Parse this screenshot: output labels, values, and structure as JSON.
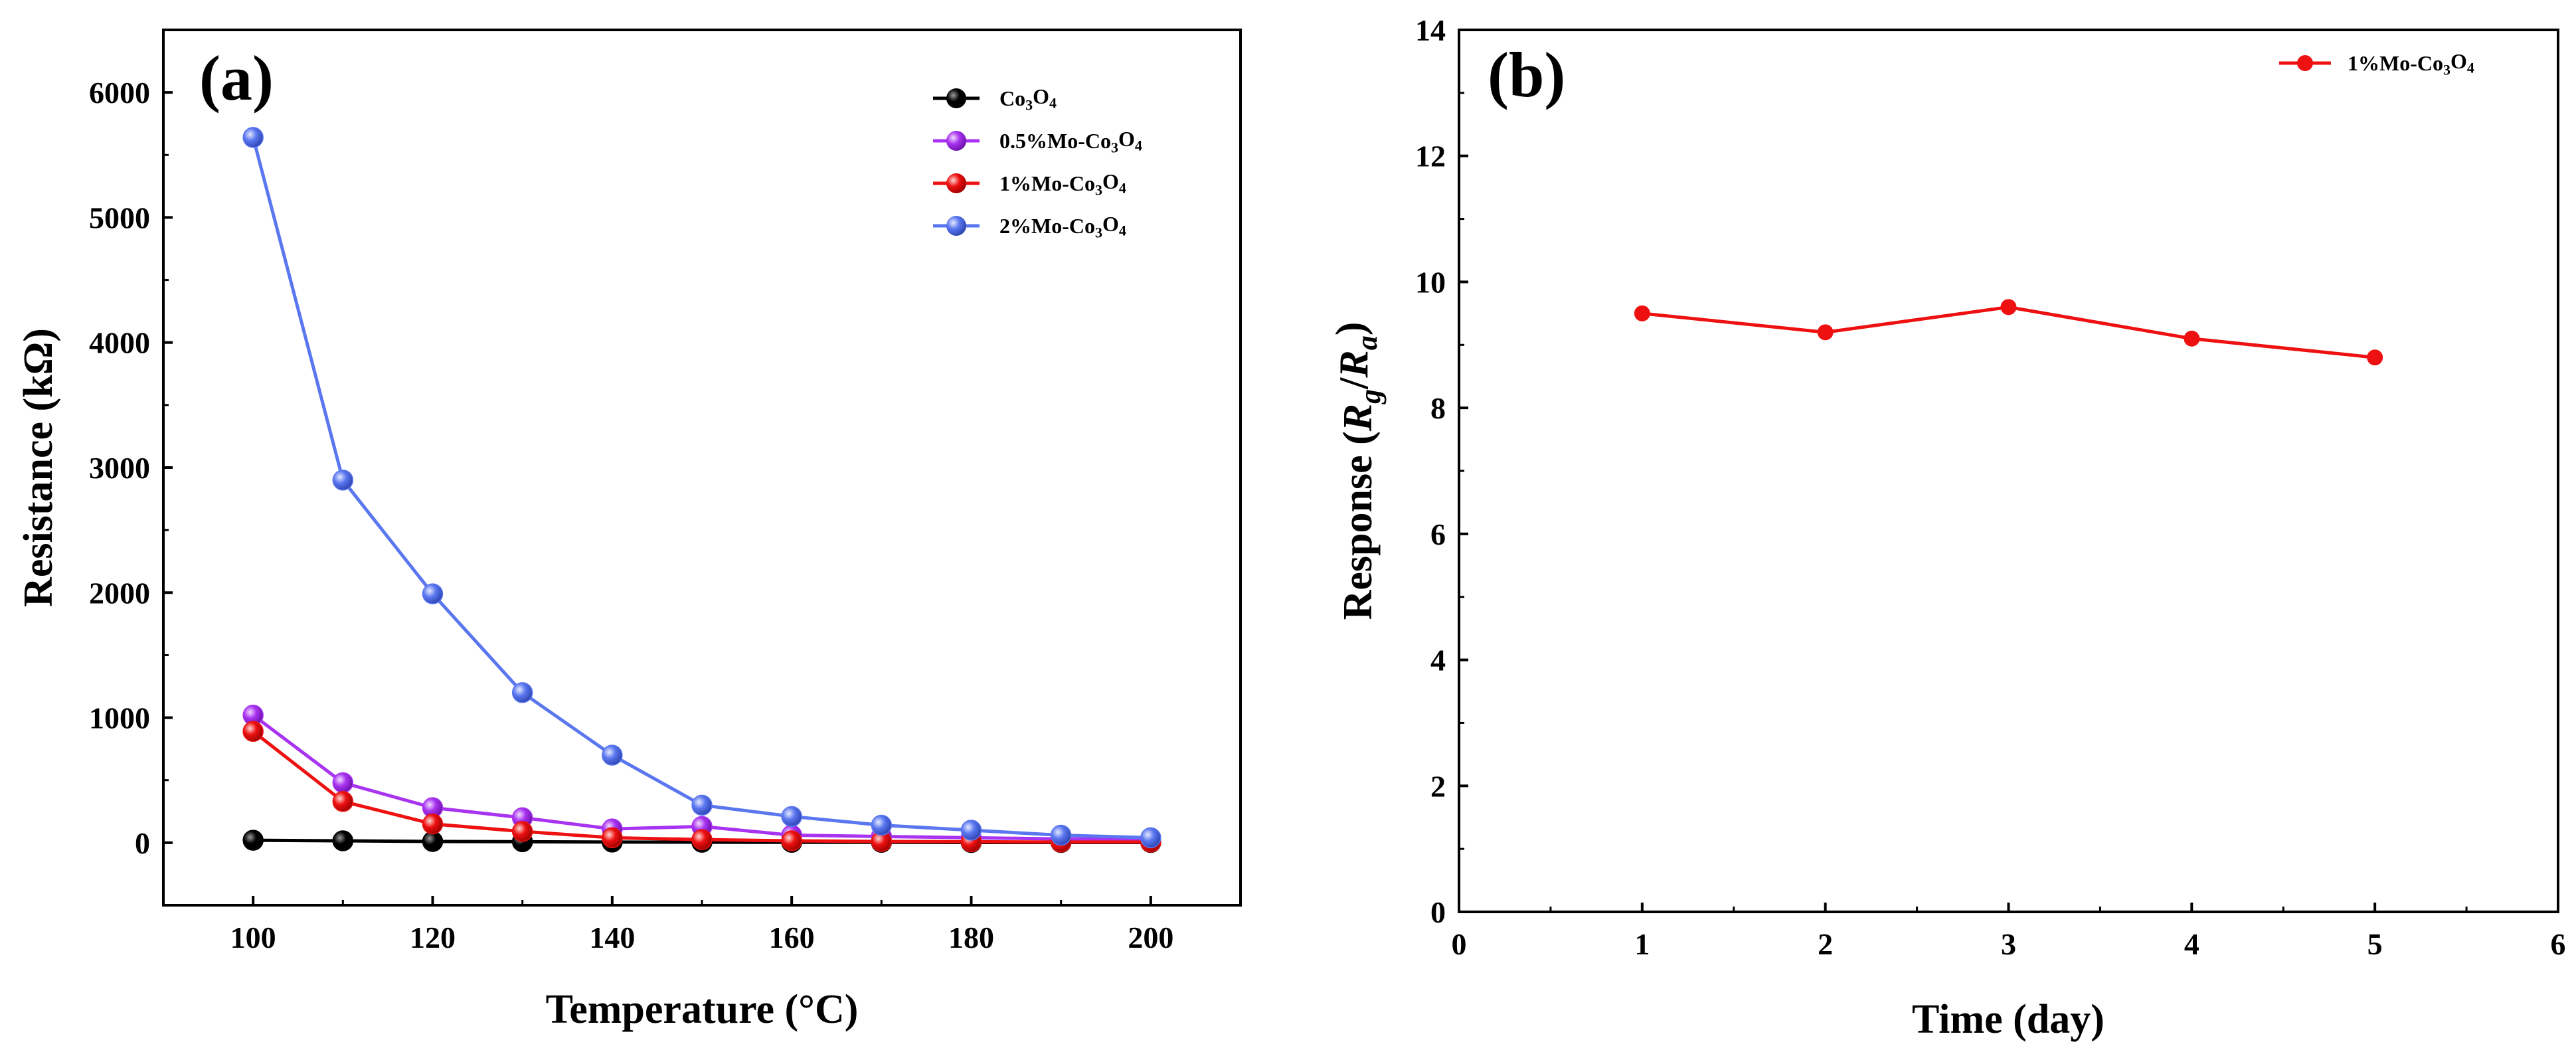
{
  "chart_data": [
    {
      "panel": "(a)",
      "type": "line",
      "xlabel": "Temperature (°C)",
      "ylabel": "Resistance (kΩ)",
      "xlim": [
        90,
        210
      ],
      "ylim": [
        -500,
        6500
      ],
      "xticks": [
        100,
        120,
        140,
        160,
        180,
        200
      ],
      "yticks": [
        0,
        1000,
        2000,
        3000,
        4000,
        5000,
        6000
      ],
      "legend_position": "top-right",
      "x": [
        100,
        110,
        120,
        130,
        140,
        150,
        160,
        170,
        180,
        190,
        200
      ],
      "series": [
        {
          "name": "Co3O4",
          "label_parts": [
            [
              "Co",
              ""
            ],
            [
              "3",
              "sub"
            ],
            [
              "O",
              ""
            ],
            [
              "4",
              "sub"
            ]
          ],
          "color": "#000000",
          "values": [
            20,
            15,
            10,
            8,
            5,
            4,
            3,
            3,
            2,
            2,
            2
          ]
        },
        {
          "name": "0.5%Mo-Co3O4",
          "label_parts": [
            [
              "0.5%Mo-Co",
              ""
            ],
            [
              "3",
              "sub"
            ],
            [
              "O",
              ""
            ],
            [
              "4",
              "sub"
            ]
          ],
          "color": "#a833f0",
          "values": [
            1020,
            480,
            280,
            200,
            110,
            130,
            60,
            50,
            40,
            30,
            30
          ]
        },
        {
          "name": "1%Mo-Co3O4",
          "label_parts": [
            [
              "1%Mo-Co",
              ""
            ],
            [
              "3",
              "sub"
            ],
            [
              "O",
              ""
            ],
            [
              "4",
              "sub"
            ]
          ],
          "color": "#ee1111",
          "values": [
            890,
            330,
            150,
            90,
            40,
            25,
            15,
            10,
            8,
            5,
            5
          ]
        },
        {
          "name": "2%Mo-Co3O4",
          "label_parts": [
            [
              "2%Mo-Co",
              ""
            ],
            [
              "3",
              "sub"
            ],
            [
              "O",
              ""
            ],
            [
              "4",
              "sub"
            ]
          ],
          "color": "#5b77f0",
          "values": [
            5640,
            2900,
            1990,
            1200,
            700,
            300,
            210,
            140,
            100,
            60,
            40
          ]
        }
      ]
    },
    {
      "panel": "(b)",
      "type": "line",
      "xlabel": "Time (day)",
      "ylabel_parts": [
        [
          "Response (",
          ""
        ],
        [
          "R",
          "i"
        ],
        [
          "g",
          "isub"
        ],
        [
          "/",
          ""
        ],
        [
          "R",
          "i"
        ],
        [
          "a",
          "isub"
        ],
        [
          ")",
          ""
        ]
      ],
      "xlim": [
        0,
        6
      ],
      "ylim": [
        0,
        14
      ],
      "xticks": [
        0,
        1,
        2,
        3,
        4,
        5,
        6
      ],
      "yticks": [
        0,
        2,
        4,
        6,
        8,
        10,
        12,
        14
      ],
      "legend_position": "top-right",
      "series": [
        {
          "name": "1%Mo-Co3O4",
          "label_parts": [
            [
              "1%Mo-Co",
              ""
            ],
            [
              "3",
              "sub"
            ],
            [
              "O",
              ""
            ],
            [
              "4",
              "sub"
            ]
          ],
          "color": "#ee1111",
          "x": [
            1,
            2,
            3,
            4,
            5
          ],
          "values": [
            9.5,
            9.2,
            9.6,
            9.1,
            8.8
          ]
        }
      ]
    }
  ]
}
